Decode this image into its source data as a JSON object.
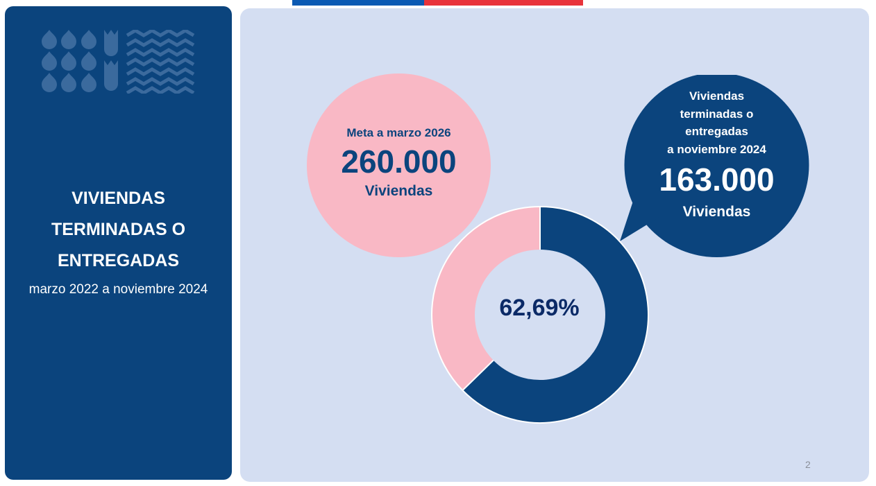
{
  "left_panel": {
    "title_line1": "VIVIENDAS",
    "title_line2": "TERMINADAS O",
    "title_line3": "ENTREGADAS",
    "subtitle": "marzo 2022 a noviembre 2024"
  },
  "goal": {
    "label": "Meta a marzo 2026",
    "value": "260.000",
    "unit": "Viviendas"
  },
  "completed": {
    "label_line1": "Viviendas",
    "label_line2": "terminadas o",
    "label_line3": "entregadas",
    "label_line4": "a noviembre 2024",
    "value": "163.000",
    "unit": "Viviendas"
  },
  "chart_data": {
    "type": "pie",
    "center_label": "62,69%",
    "slices": [
      {
        "value": 62.69,
        "color": "#0b447d"
      },
      {
        "value": 37.31,
        "color": "#f9b8c5"
      }
    ]
  },
  "colors": {
    "navy": "#0b447d",
    "pink": "#f9b8c5",
    "panel_bg": "#d4def2",
    "flag_blue": "#0a59b3",
    "flag_red": "#e8333b"
  },
  "page_number": "2"
}
